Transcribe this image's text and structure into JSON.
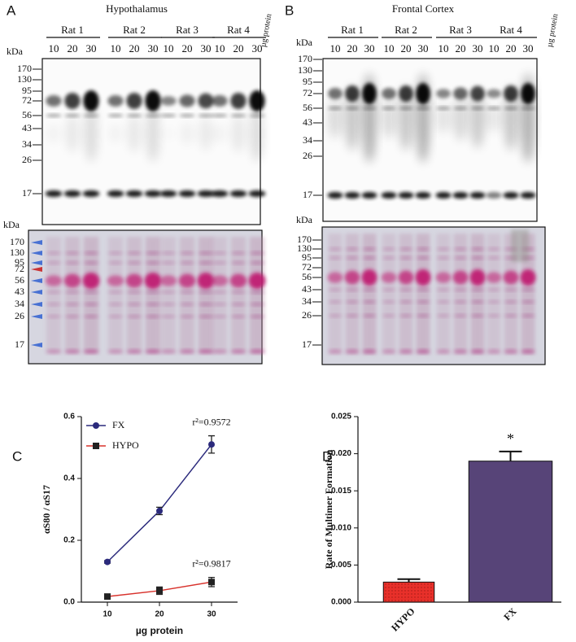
{
  "blots": [
    {
      "label": "A",
      "title": "Hypothalamus",
      "groups": [
        "Rat 1",
        "Rat 2",
        "Rat 3",
        "Rat 4"
      ],
      "lanes": [
        10,
        20,
        30
      ],
      "lane_unit": "µg protein",
      "kda": "kDa",
      "markers_top": [
        170,
        130,
        95,
        72,
        56,
        43,
        34,
        26,
        17
      ],
      "markers_bottom": [
        170,
        130,
        95,
        72,
        56,
        43,
        34,
        26,
        17
      ]
    },
    {
      "label": "B",
      "title": "Frontal Cortex",
      "groups": [
        "Rat 1",
        "Rat 2",
        "Rat 3",
        "Rat 4"
      ],
      "lanes": [
        10,
        20,
        30
      ],
      "lane_unit": "µg protein",
      "kda": "kDa",
      "markers_top": [
        170,
        130,
        95,
        72,
        56,
        43,
        34,
        26,
        17
      ],
      "markers_bottom": [
        170,
        130,
        95,
        72,
        56,
        43,
        34,
        26,
        17
      ]
    }
  ],
  "chart_data": [
    {
      "type": "line",
      "panel_label": "C",
      "x_label": "µg protein",
      "y_label": "αS80 / αS17",
      "x": [
        10,
        20,
        30
      ],
      "series": [
        {
          "name": "FX",
          "color": "#2b2a7c",
          "marker": "circle",
          "values": [
            0.13,
            0.295,
            0.51
          ],
          "errors": [
            0.004,
            0.012,
            0.028
          ],
          "annotation": "r²=0.9572"
        },
        {
          "name": "HYPO",
          "color": "#d8322c",
          "marker": "square",
          "values": [
            0.018,
            0.037,
            0.065
          ],
          "errors": [
            0.004,
            0.012,
            0.015
          ],
          "annotation": "r²=0.9817"
        }
      ],
      "xlim": [
        5,
        35
      ],
      "xticks": [
        10,
        20,
        30
      ],
      "ylim": [
        0,
        0.6
      ],
      "yticks": [
        {
          "value": 0,
          "label": "0.0"
        },
        0.2,
        0.4,
        0.6
      ],
      "legend": "upper-left"
    },
    {
      "type": "bar",
      "panel_label": "D",
      "y_label": "Rate of Multimer Formation",
      "categories": [
        "HYPO",
        "FX"
      ],
      "values": [
        0.0027,
        0.019
      ],
      "errors": [
        0.0004,
        0.0013
      ],
      "colors": [
        "#e8302a",
        "#574478"
      ],
      "value_annotations": [
        null,
        "*"
      ],
      "ylim": [
        0,
        0.025
      ],
      "yticks": [
        {
          "value": 0,
          "label": "0.000"
        },
        0.005,
        {
          "value": 0.01,
          "label": "0.010"
        },
        0.015,
        {
          "value": 0.02,
          "label": "0.020"
        },
        0.025
      ]
    }
  ]
}
